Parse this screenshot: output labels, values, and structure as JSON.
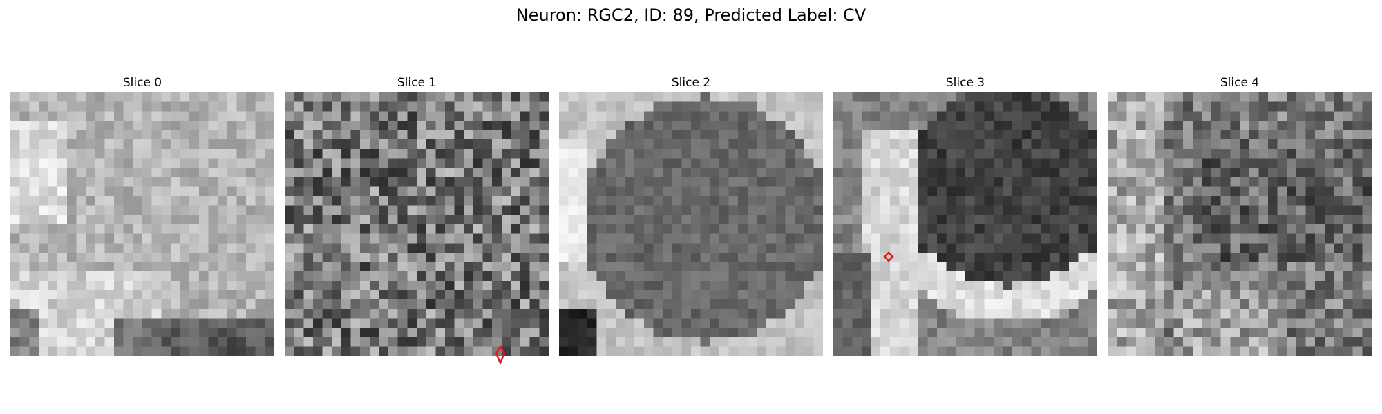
{
  "figure": {
    "title": "Neuron: RGC2, ID: 89, Predicted Label: CV"
  },
  "panels": [
    {
      "title": "Slice 0",
      "texture": "bright-top-left-dark-bottom",
      "marker": false
    },
    {
      "title": "Slice 1",
      "texture": "uniform-noisy-gray",
      "marker": true,
      "marker_color": "#e8141c",
      "marker_shape": "elongated-diamond"
    },
    {
      "title": "Slice 2",
      "texture": "dark-round-cell-bright-left-edge",
      "marker": false
    },
    {
      "title": "Slice 3",
      "texture": "dark-round-cell-bright-left-band",
      "marker": true,
      "marker_color": "#e8141c",
      "marker_shape": "small-diamond"
    },
    {
      "title": "Slice 4",
      "texture": "mottled-gray-bright-left",
      "marker": false
    }
  ],
  "colors": {
    "background": "#ffffff",
    "marker": "#e8141c",
    "colormap": "grayscale"
  }
}
